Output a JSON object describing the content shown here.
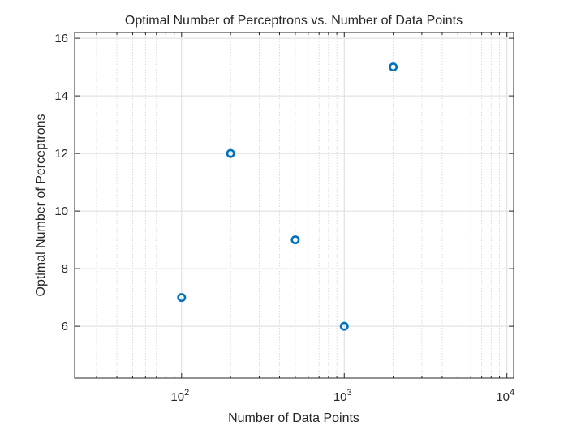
{
  "chart_data": {
    "type": "scatter",
    "title": "Optimal Number of Perceptrons vs. Number of Data Points",
    "xlabel": "Number of Data Points",
    "ylabel": "Optimal Number of Perceptrons",
    "x_scale": "log",
    "xlim": [
      22,
      11000
    ],
    "ylim": [
      4.2,
      16.2
    ],
    "x_ticks": [
      {
        "value": 100,
        "base": "10",
        "exp": "2"
      },
      {
        "value": 1000,
        "base": "10",
        "exp": "3"
      },
      {
        "value": 10000,
        "base": "10",
        "exp": "4"
      }
    ],
    "y_ticks": [
      6,
      8,
      10,
      12,
      14,
      16
    ],
    "grid": true,
    "minor_grid_x": true,
    "marker": "o",
    "marker_color": "#0072BD",
    "points": [
      {
        "x": 100,
        "y": 7
      },
      {
        "x": 200,
        "y": 12
      },
      {
        "x": 500,
        "y": 9
      },
      {
        "x": 1000,
        "y": 6
      },
      {
        "x": 2000,
        "y": 15
      }
    ]
  }
}
